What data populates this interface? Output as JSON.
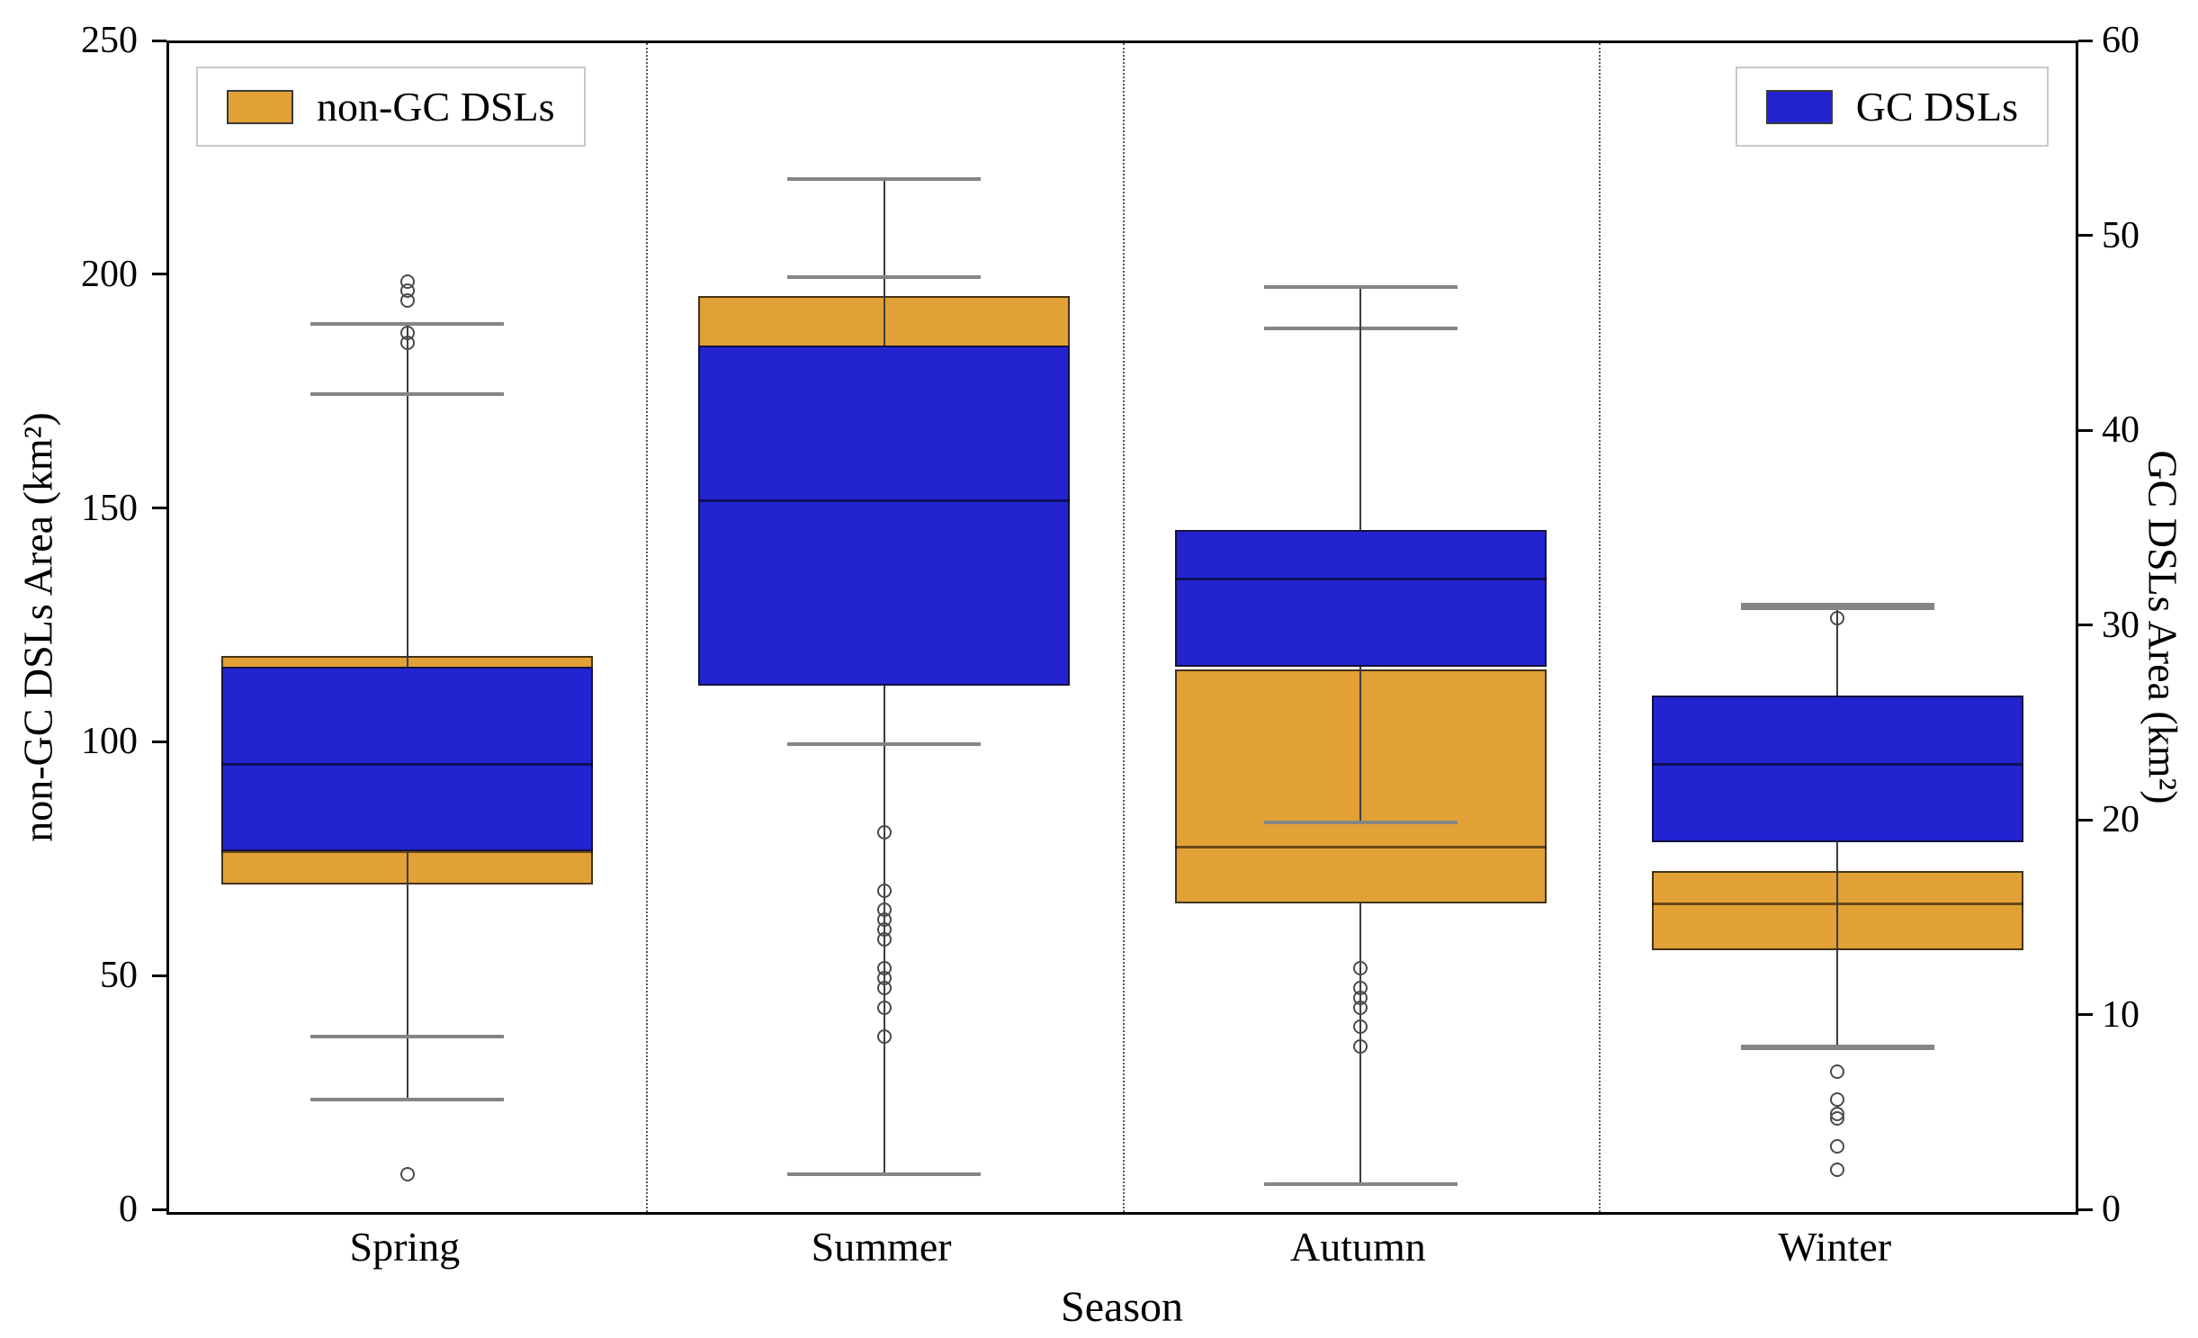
{
  "chart_data": {
    "type": "boxplot",
    "title": "",
    "categories": [
      "Spring",
      "Summer",
      "Autumn",
      "Winter"
    ],
    "xlabel": "Season",
    "left_axis": {
      "label": "non-GC DSLs Area (km²)",
      "min": 0,
      "max": 250,
      "ticks": [
        0,
        50,
        100,
        150,
        200,
        250
      ]
    },
    "right_axis": {
      "label": "GC DSLs Area (km²)",
      "min": 0,
      "max": 60,
      "ticks": [
        0,
        10,
        20,
        30,
        40,
        50,
        60
      ]
    },
    "legend_position": {
      "non_gc": "top-left",
      "gc": "top-right"
    },
    "series": [
      {
        "name": "non-GC DSLs",
        "color": "#e2a136",
        "axis": "left",
        "boxes": [
          {
            "category": "Spring",
            "q1": 70,
            "median": 77,
            "q3": 119,
            "whisker_low": 24,
            "whisker_high": 190,
            "outliers": [
              8,
              186,
              188,
              195,
              197,
              199
            ]
          },
          {
            "category": "Summer",
            "q1": 113,
            "median": 150,
            "q3": 196,
            "whisker_low": 8,
            "whisker_high": 221,
            "outliers": []
          },
          {
            "category": "Autumn",
            "q1": 66,
            "median": 78,
            "q3": 116,
            "whisker_low": 6,
            "whisker_high": 189,
            "outliers": []
          },
          {
            "category": "Winter",
            "q1": 56,
            "median": 66,
            "q3": 73,
            "whisker_low": 35,
            "whisker_high": 130,
            "outliers": [
              9,
              14,
              20,
              21,
              24,
              30,
              127
            ]
          }
        ]
      },
      {
        "name": "GC DSLs",
        "color": "#2323cf",
        "axis": "right",
        "boxes": [
          {
            "category": "Spring",
            "q1": 18.5,
            "median": 23,
            "q3": 28,
            "whisker_low": 9,
            "whisker_high": 42,
            "outliers": []
          },
          {
            "category": "Summer",
            "q1": 27,
            "median": 36.5,
            "q3": 44.5,
            "whisker_low": 24,
            "whisker_high": 48,
            "outliers": [
              9,
              10.5,
              11.5,
              12,
              12.5,
              14,
              14.5,
              15,
              15.5,
              16.5,
              19.5
            ]
          },
          {
            "category": "Autumn",
            "q1": 28,
            "median": 32.5,
            "q3": 35,
            "whisker_low": 20,
            "whisker_high": 47.5,
            "outliers": [
              8.5,
              9.5,
              10.5,
              11,
              11.5,
              12.5
            ]
          },
          {
            "category": "Winter",
            "q1": 19,
            "median": 23,
            "q3": 26.5,
            "whisker_low": 8.5,
            "whisker_high": 31,
            "outliers": []
          }
        ]
      }
    ]
  }
}
